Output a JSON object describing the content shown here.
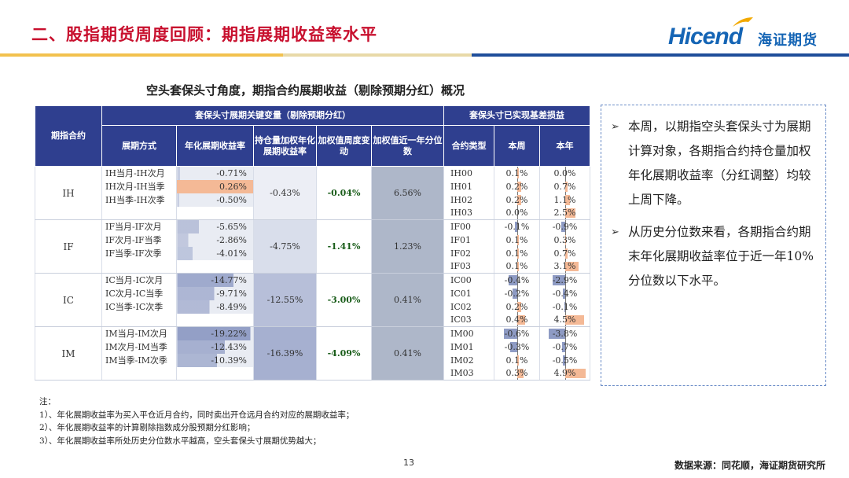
{
  "header": {
    "title": "二、股指期货周度回顾：期指展期收益率水平",
    "logo_en": "Hicend",
    "logo_cn": "海证期货",
    "brand_color": "#1565b5",
    "title_color": "#c8102e"
  },
  "table": {
    "title": "空头套保头寸角度，期指合约展期收益（剔除预期分红）概况",
    "headers": {
      "contract": "期指合约",
      "group1": "套保头寸展期关键变量（剔除预期分红）",
      "group2": "套保头寸已实现基差损益",
      "method": "展期方式",
      "rate": "年化展期收益率",
      "agg": "持仓量加权年化展期收益率",
      "chg": "加权值周度变动",
      "pct": "加权值近一年分位数",
      "code": "合约类型",
      "week": "本周",
      "year": "本年"
    },
    "groups": [
      {
        "contract": "IH",
        "agg": "-0.43%",
        "chg": "-0.04%",
        "pct": "6.56%",
        "rows": [
          {
            "method": "IH当月-IH次月",
            "rate": "-0.71%",
            "rate_value": -0.71,
            "code": "IH00",
            "week": "0.1%",
            "week_value": 0.1,
            "year": "0.0%",
            "year_value": 0.0
          },
          {
            "method": "IH次月-IH当季",
            "rate": "0.26%",
            "rate_value": 0.26,
            "code": "IH01",
            "week": "0.2%",
            "week_value": 0.2,
            "year": "0.7%",
            "year_value": 0.7
          },
          {
            "method": "IH当季-IH次季",
            "rate": "-0.50%",
            "rate_value": -0.5,
            "code": "IH02",
            "week": "0.2%",
            "week_value": 0.2,
            "year": "1.1%",
            "year_value": 1.1
          },
          {
            "method": "",
            "rate": "",
            "code": "IH03",
            "week": "0.0%",
            "week_value": 0.0,
            "year": "2.5%",
            "year_value": 2.5
          }
        ]
      },
      {
        "contract": "IF",
        "agg": "-4.75%",
        "chg": "-1.41%",
        "pct": "1.23%",
        "rows": [
          {
            "method": "IF当月-IF次月",
            "rate": "-5.65%",
            "rate_value": -5.65,
            "code": "IF00",
            "week": "-0.1%",
            "week_value": -0.1,
            "year": "-0.9%",
            "year_value": -0.9
          },
          {
            "method": "IF次月-IF当季",
            "rate": "-2.86%",
            "rate_value": -2.86,
            "code": "IF01",
            "week": "0.1%",
            "week_value": 0.1,
            "year": "0.3%",
            "year_value": 0.3
          },
          {
            "method": "IF当季-IF次季",
            "rate": "-4.01%",
            "rate_value": -4.01,
            "code": "IF02",
            "week": "0.1%",
            "week_value": 0.1,
            "year": "0.7%",
            "year_value": 0.7
          },
          {
            "method": "",
            "rate": "",
            "code": "IF03",
            "week": "0.1%",
            "week_value": 0.1,
            "year": "3.1%",
            "year_value": 3.1
          }
        ]
      },
      {
        "contract": "IC",
        "agg": "-12.55%",
        "chg": "-3.00%",
        "pct": "0.41%",
        "rows": [
          {
            "method": "IC当月-IC次月",
            "rate": "-14.77%",
            "rate_value": -14.77,
            "code": "IC00",
            "week": "-0.4%",
            "week_value": -0.4,
            "year": "-2.9%",
            "year_value": -2.9
          },
          {
            "method": "IC次月-IC当季",
            "rate": "-9.71%",
            "rate_value": -9.71,
            "code": "IC01",
            "week": "-0.2%",
            "week_value": -0.2,
            "year": "-0.4%",
            "year_value": -0.4
          },
          {
            "method": "IC当季-IC次季",
            "rate": "-8.49%",
            "rate_value": -8.49,
            "code": "IC02",
            "week": "0.2%",
            "week_value": 0.2,
            "year": "-0.1%",
            "year_value": -0.1
          },
          {
            "method": "",
            "rate": "",
            "code": "IC03",
            "week": "0.4%",
            "week_value": 0.4,
            "year": "4.5%",
            "year_value": 4.5
          }
        ]
      },
      {
        "contract": "IM",
        "agg": "-16.39%",
        "chg": "-4.09%",
        "pct": "0.41%",
        "rows": [
          {
            "method": "IM当月-IM次月",
            "rate": "-19.22%",
            "rate_value": -19.22,
            "code": "IM00",
            "week": "-0.6%",
            "week_value": -0.6,
            "year": "-3.8%",
            "year_value": -3.8
          },
          {
            "method": "IM次月-IM当季",
            "rate": "-12.43%",
            "rate_value": -12.43,
            "code": "IM01",
            "week": "-0.3%",
            "week_value": -0.3,
            "year": "-0.7%",
            "year_value": -0.7
          },
          {
            "method": "IM当季-IM次季",
            "rate": "-10.39%",
            "rate_value": -10.39,
            "code": "IM02",
            "week": "0.1%",
            "week_value": 0.1,
            "year": "-0.5%",
            "year_value": -0.5
          },
          {
            "method": "",
            "rate": "",
            "code": "IM03",
            "week": "0.3%",
            "week_value": 0.3,
            "year": "4.9%",
            "year_value": 4.9
          }
        ]
      }
    ]
  },
  "commentary": {
    "bullet": "➢",
    "items": [
      "本周，以期指空头套保头寸为展期计算对象，各期指合约持仓量加权年化展期收益率（分红调整）均较上周下降。",
      "从历史分位数来看，各期指合约期末年化展期收益率位于近一年10%分位数以下水平。"
    ]
  },
  "notes": {
    "label": "注：",
    "lines": [
      "1）、年化展期收益率为买入平仓近月合约，同时卖出开仓远月合约对应的展期收益率；",
      "2）、年化展期收益率的计算剔除指数成分股预期分红影响；",
      "3）、年化展期收益率所处历史分位数水平越高，空头套保头寸展期优势越大；"
    ]
  },
  "footer": {
    "page": "13",
    "source": "数据来源：同花顺，海证期货研究所"
  },
  "colors": {
    "header_bg": "#2f3f8f",
    "positive_bar": "#f4b996",
    "negative_bar": "#8e9bc4",
    "percentile_bg": "#aeb7c9"
  }
}
